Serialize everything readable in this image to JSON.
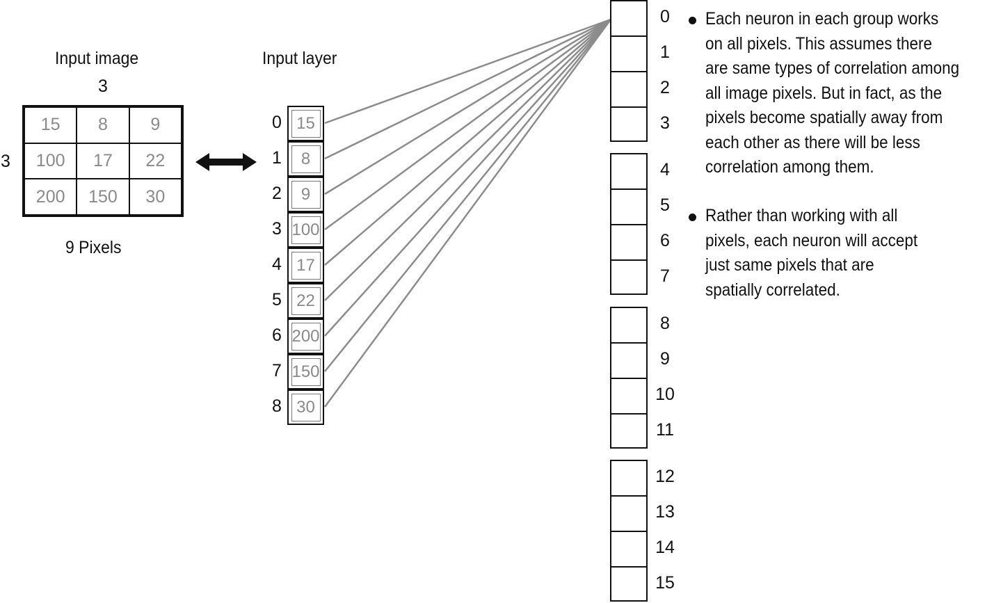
{
  "input_image": {
    "title": "Input image",
    "width_label": "3",
    "height_label": "3",
    "caption": "9 Pixels",
    "pixels": [
      "15",
      "8",
      "9",
      "100",
      "17",
      "22",
      "200",
      "150",
      "30"
    ]
  },
  "input_layer": {
    "title": "Input layer",
    "indices": [
      "0",
      "1",
      "2",
      "3",
      "4",
      "5",
      "6",
      "7",
      "8"
    ],
    "values": [
      "15",
      "8",
      "9",
      "100",
      "17",
      "22",
      "200",
      "150",
      "30"
    ]
  },
  "neurons": {
    "indices": [
      "0",
      "1",
      "2",
      "3",
      "4",
      "5",
      "6",
      "7",
      "8",
      "9",
      "10",
      "11",
      "12",
      "13",
      "14",
      "15"
    ],
    "group_size": 4,
    "connected_neuron": 0
  },
  "notes": [
    "Each neuron in each group works\non all pixels. This assumes there\nare same types of correlation among\nall image pixels. But in fact, as the\npixels become spatially away from\neach other as there will be less\ncorrelation among them.",
    "Rather than working with all\npixels, each neuron will accept\njust same pixels that are\nspatially correlated."
  ],
  "colors": {
    "line": "#111111",
    "pixel_text": "#8a8a8a",
    "connector": "#8c8c8c"
  }
}
